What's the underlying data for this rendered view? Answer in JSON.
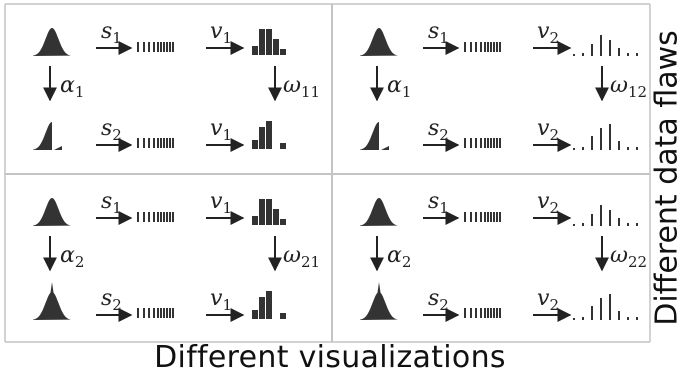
{
  "x_axis_label": "Different visualizations",
  "y_axis_label": "Different data flaws",
  "symbols": {
    "s1": {
      "base": "s",
      "sub": "1"
    },
    "s2": {
      "base": "s",
      "sub": "2"
    },
    "v1": {
      "base": "v",
      "sub": "1"
    },
    "v2": {
      "base": "v",
      "sub": "2"
    },
    "alpha1": {
      "base": "α",
      "sub": "1"
    },
    "alpha2": {
      "base": "α",
      "sub": "2"
    },
    "omega11": {
      "base": "ω",
      "sub": "11"
    },
    "omega12": {
      "base": "ω",
      "sub": "12"
    },
    "omega21": {
      "base": "ω",
      "sub": "21"
    },
    "omega22": {
      "base": "ω",
      "sub": "22"
    }
  },
  "cells": [
    {
      "row": 1,
      "col": 1,
      "flaw": "alpha1",
      "vis": "v1",
      "omega": "omega11"
    },
    {
      "row": 1,
      "col": 2,
      "flaw": "alpha1",
      "vis": "v2",
      "omega": "omega12"
    },
    {
      "row": 2,
      "col": 1,
      "flaw": "alpha2",
      "vis": "v1",
      "omega": "omega21"
    },
    {
      "row": 2,
      "col": 2,
      "flaw": "alpha2",
      "vis": "v2",
      "omega": "omega22"
    }
  ]
}
